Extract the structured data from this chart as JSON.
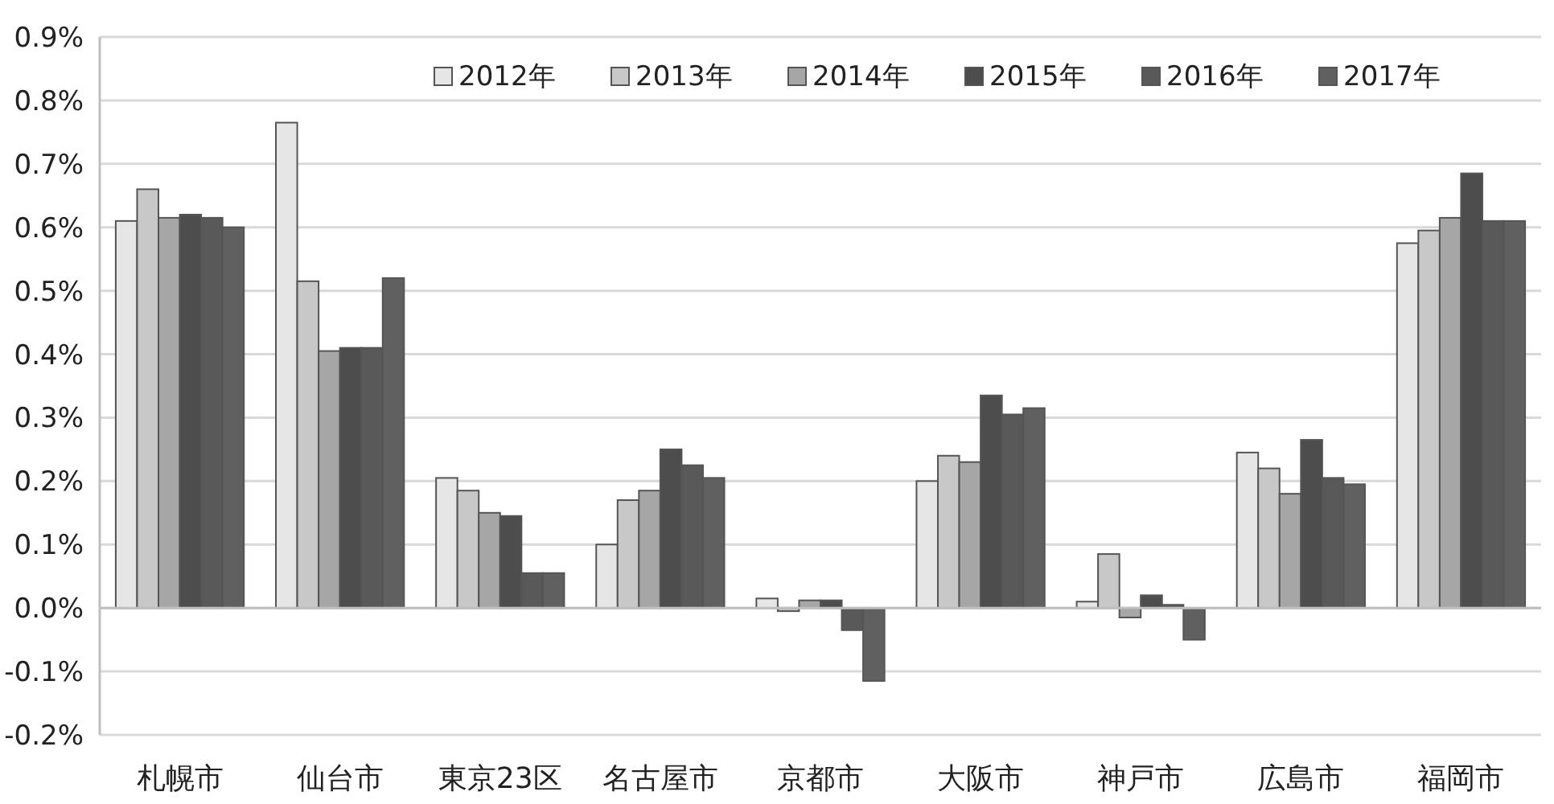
{
  "chart_data": {
    "type": "bar",
    "categories": [
      "札幌市",
      "仙台市",
      "東京23区",
      "名古屋市",
      "京都市",
      "大阪市",
      "神戸市",
      "広島市",
      "福岡市"
    ],
    "series": [
      {
        "name": "2012年",
        "color": "#e6e6e6",
        "values": [
          0.61,
          0.765,
          0.205,
          0.1,
          0.015,
          0.2,
          0.01,
          0.245,
          0.575
        ]
      },
      {
        "name": "2013年",
        "color": "#c8c8c8",
        "values": [
          0.66,
          0.515,
          0.185,
          0.17,
          -0.005,
          0.24,
          0.085,
          0.22,
          0.595
        ]
      },
      {
        "name": "2014年",
        "color": "#a6a6a6",
        "values": [
          0.615,
          0.405,
          0.15,
          0.185,
          0.012,
          0.23,
          -0.015,
          0.18,
          0.615
        ]
      },
      {
        "name": "2015年",
        "color": "#4d4d4d",
        "values": [
          0.62,
          0.41,
          0.145,
          0.25,
          0.012,
          0.335,
          0.02,
          0.265,
          0.685
        ]
      },
      {
        "name": "2016年",
        "color": "#595959",
        "values": [
          0.615,
          0.41,
          0.055,
          0.225,
          -0.035,
          0.305,
          0.005,
          0.205,
          0.61
        ]
      },
      {
        "name": "2017年",
        "color": "#606060",
        "values": [
          0.6,
          0.52,
          0.055,
          0.205,
          -0.115,
          0.315,
          -0.05,
          0.195,
          0.61
        ]
      }
    ],
    "ylim": [
      -0.2,
      0.9
    ],
    "yticks": [
      {
        "value": -0.2,
        "label": "-0.2%"
      },
      {
        "value": -0.1,
        "label": "-0.1%"
      },
      {
        "value": 0,
        "label": "0.0%"
      },
      {
        "value": 0.1,
        "label": "0.1%"
      },
      {
        "value": 0.2,
        "label": "0.2%"
      },
      {
        "value": 0.3,
        "label": "0.3%"
      },
      {
        "value": 0.4,
        "label": "0.4%"
      },
      {
        "value": 0.5,
        "label": "0.5%"
      },
      {
        "value": 0.6,
        "label": "0.6%"
      },
      {
        "value": 0.7,
        "label": "0.7%"
      },
      {
        "value": 0.8,
        "label": "0.8%"
      },
      {
        "value": 0.9,
        "label": "0.9%"
      }
    ],
    "grid": "y",
    "legend": "top"
  }
}
